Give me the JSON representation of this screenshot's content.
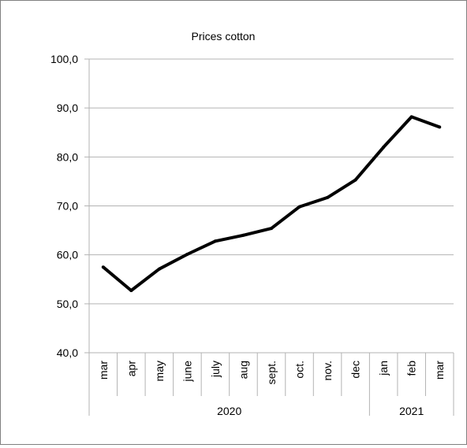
{
  "chart_data": {
    "type": "line",
    "title": "Prices cotton",
    "xlabel": "",
    "ylabel": "",
    "categories": [
      "mar",
      "apr",
      "may",
      "june",
      "july",
      "aug",
      "sept.",
      "oct.",
      "nov.",
      "dec",
      "jan",
      "feb",
      "mar"
    ],
    "groups": [
      {
        "label": "2020",
        "start": 0,
        "end": 9
      },
      {
        "label": "2021",
        "start": 10,
        "end": 12
      }
    ],
    "series": [
      {
        "values": [
          57.5,
          52.7,
          57.1,
          60.1,
          62.8,
          64.0,
          65.4,
          69.8,
          71.7,
          75.3,
          82.0,
          88.2,
          86.1
        ]
      }
    ],
    "ylim": [
      40,
      100
    ],
    "yticks": [
      "40,0",
      "50,0",
      "60,0",
      "70,0",
      "80,0",
      "90,0",
      "100,0"
    ],
    "grid": true,
    "legend": "none",
    "line_color": "#000000",
    "grid_color": "#b3b3b3"
  }
}
